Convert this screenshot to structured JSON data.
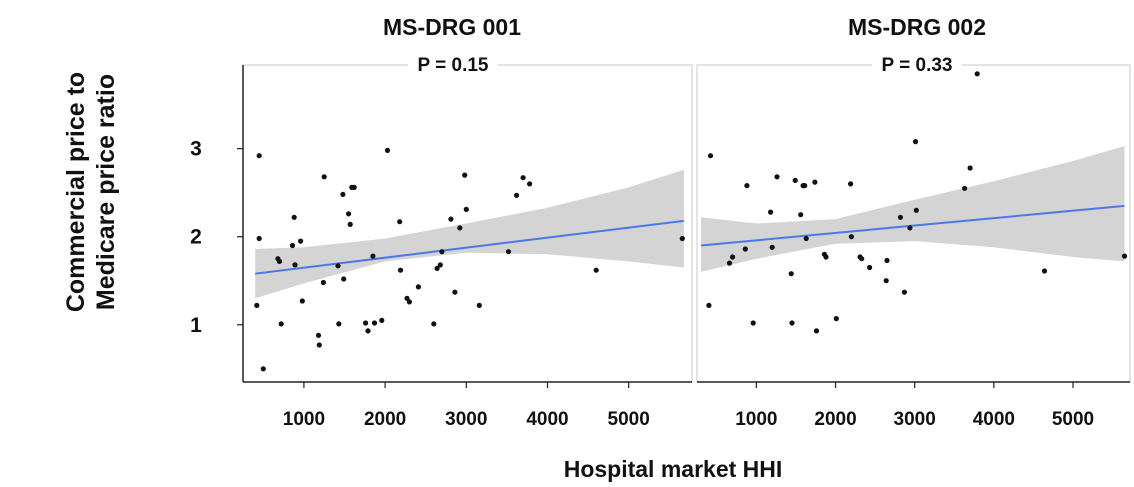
{
  "y_axis_title_lines": [
    "Commercial price to",
    "Medicare price ratio"
  ],
  "x_axis_title": "Hospital market HHI",
  "colors": {
    "fit_line": "#4a78e8",
    "confidence_band": "#d4d4d4",
    "points": "#111111",
    "panel_border": "#c8c8c8"
  },
  "chart_data": [
    {
      "type": "scatter",
      "title": "MS-DRG 001",
      "annotation": "P = 0.15",
      "xlabel": "Hospital market HHI",
      "ylabel": "Commercial price to Medicare price ratio",
      "x_ticks": [
        1000,
        2000,
        3000,
        4000,
        5000
      ],
      "y_ticks": [
        1,
        2,
        3
      ],
      "xlim": [
        250,
        5780
      ],
      "ylim": [
        0.35,
        3.95
      ],
      "grid": false,
      "points": [
        {
          "x": 420,
          "y": 1.22
        },
        {
          "x": 450,
          "y": 2.92
        },
        {
          "x": 450,
          "y": 1.98
        },
        {
          "x": 500,
          "y": 0.5
        },
        {
          "x": 680,
          "y": 1.75
        },
        {
          "x": 700,
          "y": 1.72
        },
        {
          "x": 720,
          "y": 1.01
        },
        {
          "x": 860,
          "y": 1.9
        },
        {
          "x": 880,
          "y": 2.22
        },
        {
          "x": 890,
          "y": 1.68
        },
        {
          "x": 960,
          "y": 1.95
        },
        {
          "x": 980,
          "y": 1.27
        },
        {
          "x": 1180,
          "y": 0.88
        },
        {
          "x": 1190,
          "y": 0.77
        },
        {
          "x": 1240,
          "y": 1.48
        },
        {
          "x": 1250,
          "y": 2.68
        },
        {
          "x": 1420,
          "y": 1.67
        },
        {
          "x": 1430,
          "y": 1.01
        },
        {
          "x": 1480,
          "y": 2.48
        },
        {
          "x": 1490,
          "y": 1.52
        },
        {
          "x": 1550,
          "y": 2.26
        },
        {
          "x": 1570,
          "y": 2.14
        },
        {
          "x": 1590,
          "y": 2.56
        },
        {
          "x": 1620,
          "y": 2.56
        },
        {
          "x": 1760,
          "y": 1.02
        },
        {
          "x": 1790,
          "y": 0.93
        },
        {
          "x": 1850,
          "y": 1.78
        },
        {
          "x": 1870,
          "y": 1.02
        },
        {
          "x": 1960,
          "y": 1.05
        },
        {
          "x": 2030,
          "y": 2.98
        },
        {
          "x": 2180,
          "y": 2.17
        },
        {
          "x": 2190,
          "y": 1.62
        },
        {
          "x": 2270,
          "y": 1.3
        },
        {
          "x": 2300,
          "y": 1.26
        },
        {
          "x": 2410,
          "y": 1.43
        },
        {
          "x": 2600,
          "y": 1.01
        },
        {
          "x": 2640,
          "y": 1.64
        },
        {
          "x": 2680,
          "y": 1.68
        },
        {
          "x": 2700,
          "y": 1.83
        },
        {
          "x": 2810,
          "y": 2.2
        },
        {
          "x": 2860,
          "y": 1.37
        },
        {
          "x": 2920,
          "y": 2.1
        },
        {
          "x": 2980,
          "y": 2.7
        },
        {
          "x": 3000,
          "y": 2.31
        },
        {
          "x": 3160,
          "y": 1.22
        },
        {
          "x": 3520,
          "y": 1.83
        },
        {
          "x": 3620,
          "y": 2.47
        },
        {
          "x": 3700,
          "y": 2.67
        },
        {
          "x": 3780,
          "y": 2.6
        },
        {
          "x": 4600,
          "y": 1.62
        },
        {
          "x": 5660,
          "y": 1.98
        }
      ],
      "fit_line": {
        "x": [
          400,
          5680
        ],
        "y": [
          1.58,
          2.18
        ]
      },
      "confidence_band": {
        "x": [
          400,
          1000,
          2000,
          3000,
          4000,
          5000,
          5680
        ],
        "lower": [
          1.3,
          1.47,
          1.72,
          1.82,
          1.8,
          1.72,
          1.65
        ],
        "upper": [
          1.86,
          1.88,
          1.98,
          2.15,
          2.33,
          2.56,
          2.76
        ]
      }
    },
    {
      "type": "scatter",
      "title": "MS-DRG 002",
      "annotation": "P = 0.33",
      "xlabel": "Hospital market HHI",
      "ylabel": "Commercial price to Medicare price ratio",
      "x_ticks": [
        1000,
        2000,
        3000,
        4000,
        5000
      ],
      "y_ticks": [
        1,
        2,
        3
      ],
      "xlim": [
        250,
        5720
      ],
      "ylim": [
        0.35,
        3.95
      ],
      "grid": false,
      "points": [
        {
          "x": 400,
          "y": 1.22
        },
        {
          "x": 420,
          "y": 2.92
        },
        {
          "x": 660,
          "y": 1.7
        },
        {
          "x": 700,
          "y": 1.77
        },
        {
          "x": 860,
          "y": 1.86
        },
        {
          "x": 880,
          "y": 2.58
        },
        {
          "x": 960,
          "y": 1.02
        },
        {
          "x": 1180,
          "y": 2.28
        },
        {
          "x": 1200,
          "y": 1.88
        },
        {
          "x": 1260,
          "y": 2.68
        },
        {
          "x": 1440,
          "y": 1.58
        },
        {
          "x": 1450,
          "y": 1.02
        },
        {
          "x": 1490,
          "y": 2.64
        },
        {
          "x": 1560,
          "y": 2.25
        },
        {
          "x": 1590,
          "y": 2.58
        },
        {
          "x": 1610,
          "y": 2.58
        },
        {
          "x": 1630,
          "y": 1.98
        },
        {
          "x": 1740,
          "y": 2.62
        },
        {
          "x": 1760,
          "y": 0.93
        },
        {
          "x": 1860,
          "y": 1.8
        },
        {
          "x": 1880,
          "y": 1.77
        },
        {
          "x": 2010,
          "y": 1.07
        },
        {
          "x": 2190,
          "y": 2.6
        },
        {
          "x": 2200,
          "y": 2.0
        },
        {
          "x": 2310,
          "y": 1.77
        },
        {
          "x": 2330,
          "y": 1.75
        },
        {
          "x": 2430,
          "y": 1.65
        },
        {
          "x": 2640,
          "y": 1.5
        },
        {
          "x": 2650,
          "y": 1.73
        },
        {
          "x": 2820,
          "y": 2.22
        },
        {
          "x": 2870,
          "y": 1.37
        },
        {
          "x": 2940,
          "y": 2.1
        },
        {
          "x": 3010,
          "y": 3.08
        },
        {
          "x": 3020,
          "y": 2.3
        },
        {
          "x": 3630,
          "y": 2.55
        },
        {
          "x": 3700,
          "y": 2.78
        },
        {
          "x": 3790,
          "y": 3.85
        },
        {
          "x": 4640,
          "y": 1.61
        },
        {
          "x": 5650,
          "y": 1.78
        }
      ],
      "fit_line": {
        "x": [
          300,
          5650
        ],
        "y": [
          1.9,
          2.35
        ]
      },
      "confidence_band": {
        "x": [
          300,
          1000,
          2000,
          3000,
          4000,
          5000,
          5650
        ],
        "lower": [
          1.6,
          1.75,
          1.92,
          1.95,
          1.88,
          1.77,
          1.72
        ],
        "upper": [
          2.22,
          2.15,
          2.2,
          2.42,
          2.63,
          2.86,
          3.03
        ]
      }
    }
  ]
}
